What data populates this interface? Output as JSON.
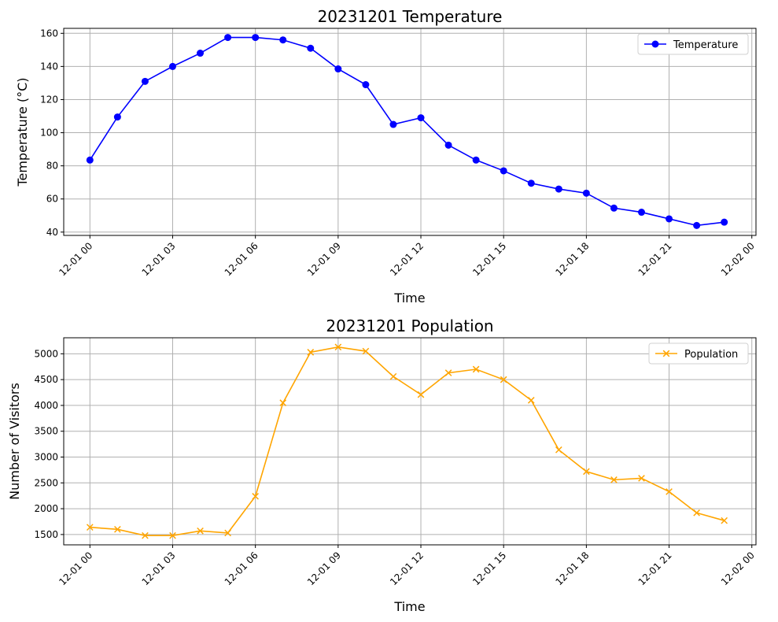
{
  "chart_data": [
    {
      "type": "line",
      "title": "20231201 Temperature",
      "xlabel": "Time",
      "ylabel": "Temperature (°C)",
      "x_tick_labels": [
        "12-01 00",
        "12-01 03",
        "12-01 06",
        "12-01 09",
        "12-01 12",
        "12-01 15",
        "12-01 18",
        "12-01 21",
        "12-02 00"
      ],
      "x_ticks_hours": [
        0,
        3,
        6,
        9,
        12,
        15,
        18,
        21,
        24
      ],
      "xlim_hours": [
        -0.95,
        24.15
      ],
      "y_ticks": [
        40,
        60,
        80,
        100,
        120,
        140,
        160
      ],
      "ylim": [
        38,
        163
      ],
      "grid": true,
      "legend": "top-right",
      "series": [
        {
          "name": "Temperature",
          "color": "#0000ff",
          "marker": "circle",
          "x_hours": [
            0,
            1,
            2,
            3,
            4,
            5,
            6,
            7,
            8,
            9,
            10,
            11,
            12,
            13,
            14,
            15,
            16,
            17,
            18,
            19,
            20,
            21,
            22,
            23
          ],
          "values": [
            83.5,
            109.5,
            131,
            140,
            148,
            157.5,
            157.5,
            156,
            151,
            138.5,
            129,
            105,
            109,
            92.5,
            83.5,
            77,
            69.5,
            66,
            63.5,
            54.5,
            52,
            48,
            44,
            46
          ]
        }
      ]
    },
    {
      "type": "line",
      "title": "20231201 Population",
      "xlabel": "Time",
      "ylabel": "Number of Visitors",
      "x_tick_labels": [
        "12-01 00",
        "12-01 03",
        "12-01 06",
        "12-01 09",
        "12-01 12",
        "12-01 15",
        "12-01 18",
        "12-01 21",
        "12-02 00"
      ],
      "x_ticks_hours": [
        0,
        3,
        6,
        9,
        12,
        15,
        18,
        21,
        24
      ],
      "xlim_hours": [
        -0.95,
        24.15
      ],
      "y_ticks": [
        1500,
        2000,
        2500,
        3000,
        3500,
        4000,
        4500,
        5000
      ],
      "ylim": [
        1300,
        5310
      ],
      "grid": true,
      "legend": "top-right",
      "series": [
        {
          "name": "Population",
          "color": "#ffa500",
          "marker": "x",
          "x_hours": [
            0,
            1,
            2,
            3,
            4,
            5,
            6,
            7,
            8,
            9,
            10,
            11,
            12,
            13,
            14,
            15,
            16,
            17,
            18,
            19,
            20,
            21,
            22,
            23
          ],
          "values": [
            1640,
            1600,
            1480,
            1480,
            1570,
            1530,
            2240,
            4050,
            5030,
            5130,
            5050,
            4560,
            4210,
            4630,
            4700,
            4500,
            4100,
            3140,
            2720,
            2560,
            2590,
            2330,
            1920,
            1770
          ]
        }
      ]
    }
  ]
}
